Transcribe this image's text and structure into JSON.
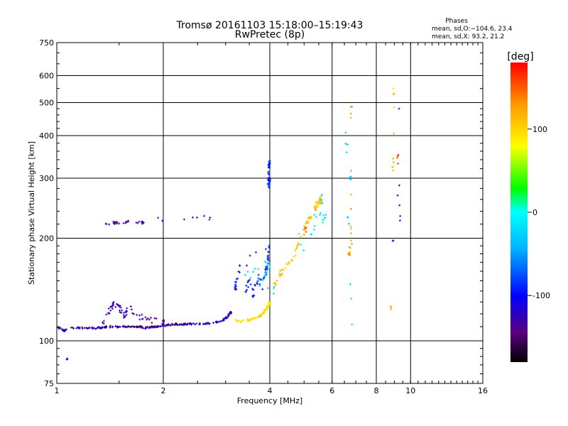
{
  "chart_data": {
    "type": "scatter",
    "title": "Tromsø 20161103 15:18:00–15:19:43",
    "subtitle": "RwPretec (8p)",
    "xlabel": "Frequency [MHz]",
    "ylabel": "Stationary phase Virtual Height [km]",
    "x_scale": "log",
    "y_scale": "log",
    "xlim": [
      1,
      16
    ],
    "ylim": [
      75,
      750
    ],
    "x_ticks": [
      1,
      2,
      4,
      6,
      8,
      10,
      16
    ],
    "x_tick_labels": [
      "1",
      "2",
      "4",
      "6",
      "8",
      "10",
      "16"
    ],
    "x_grid": [
      2,
      4,
      6,
      8,
      10,
      16
    ],
    "y_ticks": [
      75,
      100,
      200,
      300,
      400,
      500,
      600,
      750
    ],
    "y_tick_labels": [
      "75",
      "100",
      "200",
      "300",
      "400",
      "500",
      "600",
      "750"
    ],
    "grid": true,
    "phase_info": {
      "title": "Phases",
      "line_o": "mean, sd,O:−104.6, 23.4",
      "line_x": "mean, sd,X:  93.2, 21.2"
    },
    "colorbar": {
      "label": "[deg]",
      "range": [
        -180,
        180
      ],
      "ticks": [
        100,
        0,
        -100
      ],
      "tick_labels": [
        "100",
        "0",
        "-100"
      ]
    },
    "clusters": [
      {
        "name": "lower-trace",
        "phase": -120,
        "count": 180,
        "points": [
          [
            1.0,
            110
          ],
          [
            1.05,
            107
          ],
          [
            1.1,
            109
          ],
          [
            1.2,
            109
          ],
          [
            1.3,
            109
          ],
          [
            1.4,
            110
          ],
          [
            1.5,
            110
          ],
          [
            1.6,
            110
          ],
          [
            1.7,
            110
          ],
          [
            1.8,
            109
          ],
          [
            1.9,
            110
          ],
          [
            2.0,
            111
          ],
          [
            2.2,
            112
          ],
          [
            2.4,
            112
          ],
          [
            2.6,
            112
          ],
          [
            2.8,
            113
          ],
          [
            2.95,
            115
          ],
          [
            3.05,
            118
          ],
          [
            3.1,
            121
          ]
        ],
        "jitter": 1.2
      },
      {
        "name": "lower-trace-dark",
        "phase": -150,
        "count": 70,
        "points": [
          [
            1.1,
            109
          ],
          [
            1.3,
            109
          ],
          [
            1.5,
            110
          ],
          [
            1.7,
            110
          ],
          [
            1.9,
            110
          ],
          [
            2.1,
            111
          ],
          [
            2.3,
            112
          ]
        ],
        "jitter": 0.8
      },
      {
        "name": "spread-1.4",
        "phase": -130,
        "count": 70,
        "points": [
          [
            1.35,
            112
          ],
          [
            1.4,
            122
          ],
          [
            1.45,
            128
          ],
          [
            1.5,
            125
          ],
          [
            1.55,
            118
          ],
          [
            1.6,
            125
          ],
          [
            1.7,
            118
          ],
          [
            1.85,
            115
          ],
          [
            2.0,
            113
          ]
        ],
        "jitter": 4
      },
      {
        "name": "yellow-trace",
        "phase": 95,
        "count": 80,
        "points": [
          [
            3.15,
            115
          ],
          [
            3.3,
            114
          ],
          [
            3.45,
            115
          ],
          [
            3.6,
            116
          ],
          [
            3.75,
            118
          ],
          [
            3.85,
            121
          ],
          [
            3.95,
            126
          ],
          [
            4.0,
            129
          ]
        ],
        "jitter": 1.5
      },
      {
        "name": "yellow-orange-rise",
        "phase": 110,
        "count": 90,
        "points": [
          [
            4.1,
            145
          ],
          [
            4.3,
            158
          ],
          [
            4.5,
            168
          ],
          [
            4.7,
            180
          ],
          [
            4.85,
            195
          ],
          [
            5.0,
            210
          ],
          [
            5.1,
            222
          ],
          [
            5.25,
            235
          ],
          [
            5.4,
            248
          ],
          [
            5.55,
            258
          ]
        ],
        "jitter": 5
      },
      {
        "name": "blue-cloud-3.5",
        "phase": -95,
        "count": 70,
        "points": [
          [
            3.4,
            140
          ],
          [
            3.5,
            150
          ],
          [
            3.6,
            138
          ],
          [
            3.7,
            155
          ],
          [
            3.8,
            145
          ],
          [
            3.9,
            160
          ],
          [
            3.95,
            175
          ],
          [
            3.98,
            190
          ],
          [
            3.3,
            165
          ],
          [
            3.2,
            145
          ]
        ],
        "jitter": 7
      },
      {
        "name": "cyan-near-4",
        "phase": -20,
        "count": 25,
        "points": [
          [
            3.6,
            150
          ],
          [
            3.9,
            155
          ],
          [
            4.0,
            170
          ],
          [
            3.4,
            158
          ],
          [
            4.1,
            140
          ]
        ],
        "jitter": 6
      },
      {
        "name": "blue-cluster-4-290",
        "phase": -90,
        "count": 40,
        "points": [
          [
            3.95,
            290
          ],
          [
            4.0,
            295
          ],
          [
            3.98,
            285
          ],
          [
            3.97,
            300
          ],
          [
            3.99,
            330
          ]
        ],
        "jitter": 5
      },
      {
        "name": "f-layer-220",
        "phase": -140,
        "count": 30,
        "points": [
          [
            1.35,
            220
          ],
          [
            1.45,
            222
          ],
          [
            1.55,
            223
          ],
          [
            1.65,
            223
          ],
          [
            1.75,
            222
          ]
        ],
        "jitter": 2
      },
      {
        "name": "f-layer-230-blue",
        "phase": -90,
        "count": 8,
        "points": [
          [
            1.85,
            226
          ],
          [
            2.05,
            228
          ],
          [
            2.5,
            230
          ],
          [
            2.7,
            230
          ]
        ],
        "jitter": 3
      },
      {
        "name": "cyan-5-6",
        "phase": -10,
        "count": 22,
        "points": [
          [
            5.2,
            210
          ],
          [
            5.5,
            230
          ],
          [
            5.8,
            240
          ],
          [
            5.0,
            190
          ],
          [
            4.8,
            200
          ],
          [
            5.6,
            260
          ]
        ],
        "jitter": 8
      },
      {
        "name": "col-6.7",
        "phase": 130,
        "count": 22,
        "points": [
          [
            6.8,
            430
          ],
          [
            6.8,
            500
          ],
          [
            6.8,
            225
          ],
          [
            6.8,
            195
          ],
          [
            6.7,
            180
          ]
        ],
        "jitter": 3
      },
      {
        "name": "col-6.7-cyan",
        "phase": -30,
        "count": 16,
        "points": [
          [
            6.8,
            120
          ],
          [
            6.8,
            112
          ],
          [
            6.6,
            280
          ],
          [
            6.55,
            470
          ],
          [
            6.75,
            300
          ]
        ],
        "jitter": 3
      },
      {
        "name": "col-9",
        "phase": 110,
        "count": 16,
        "points": [
          [
            8.95,
            560
          ],
          [
            8.95,
            520
          ],
          [
            8.9,
            310
          ],
          [
            8.95,
            350
          ],
          [
            8.8,
            125
          ]
        ],
        "jitter": 4
      },
      {
        "name": "col-9.3",
        "phase": -110,
        "count": 8,
        "points": [
          [
            9.3,
            660
          ],
          [
            9.3,
            450
          ],
          [
            9.35,
            210
          ],
          [
            9.3,
            240
          ],
          [
            8.95,
            380
          ],
          [
            8.9,
            195
          ]
        ],
        "jitter": 3
      },
      {
        "name": "misc-red",
        "phase": 160,
        "count": 6,
        "points": [
          [
            6.8,
            505
          ],
          [
            9.2,
            370
          ],
          [
            9.2,
            320
          ],
          [
            5.1,
            205
          ],
          [
            5.05,
            215
          ]
        ],
        "jitter": 2
      },
      {
        "name": "misc-low",
        "phase": -120,
        "count": 3,
        "points": [
          [
            1.08,
            90
          ],
          [
            1.07,
            88
          ]
        ],
        "jitter": 1
      }
    ]
  }
}
